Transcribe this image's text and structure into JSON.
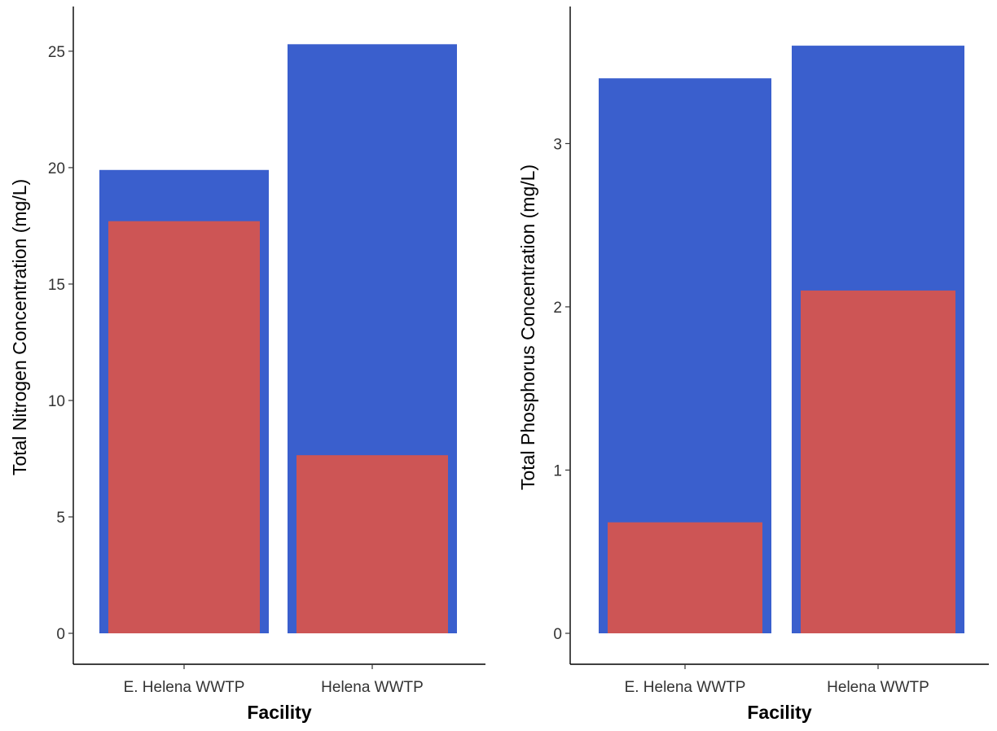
{
  "chart_data": [
    {
      "type": "bar",
      "categories": [
        "E. Helena WWTP",
        "Helena WWTP"
      ],
      "series": [
        {
          "values": [
            19.9,
            25.3
          ],
          "color": "#3a5fcd"
        },
        {
          "values": [
            17.7,
            7.65
          ],
          "color": "#cd5555"
        }
      ],
      "xlabel": "Facility",
      "ylabel": "Total Nitrogen Concentration (mg/L)",
      "ylim": [
        0,
        26.5
      ],
      "yticks": [
        0,
        5,
        10,
        15,
        20,
        25
      ],
      "grid": false
    },
    {
      "type": "bar",
      "categories": [
        "E. Helena WWTP",
        "Helena WWTP"
      ],
      "series": [
        {
          "values": [
            3.4,
            3.6
          ],
          "color": "#3a5fcd"
        },
        {
          "values": [
            0.68,
            2.1
          ],
          "color": "#cd5555"
        }
      ],
      "xlabel": "Facility",
      "ylabel": "Total Phosphorus Concentration (mg/L)",
      "ylim": [
        0,
        3.78
      ],
      "yticks": [
        0,
        1,
        2,
        3
      ],
      "grid": false
    }
  ]
}
